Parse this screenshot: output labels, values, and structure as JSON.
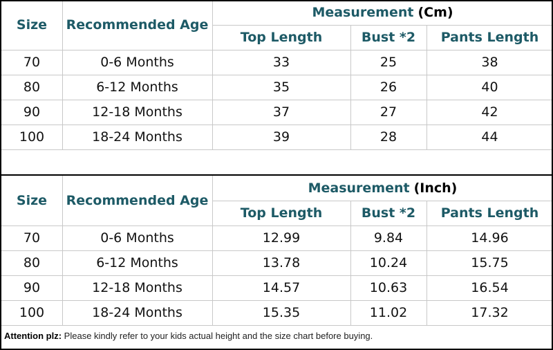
{
  "tables": [
    {
      "headers": {
        "size": "Size",
        "age": "Recommended Age",
        "group": "Measurement",
        "unit": "(Cm)",
        "columns": [
          "Top Length",
          "Bust *2",
          "Pants Length"
        ]
      },
      "rows": [
        [
          "70",
          "0-6 Months",
          "33",
          "25",
          "38"
        ],
        [
          "80",
          "6-12 Months",
          "35",
          "26",
          "40"
        ],
        [
          "90",
          "12-18 Months",
          "37",
          "27",
          "42"
        ],
        [
          "100",
          "18-24 Months",
          "39",
          "28",
          "44"
        ]
      ]
    },
    {
      "headers": {
        "size": "Size",
        "age": "Recommended Age",
        "group": "Measurement",
        "unit": "(Inch)",
        "columns": [
          "Top Length",
          "Bust *2",
          "Pants Length"
        ]
      },
      "rows": [
        [
          "70",
          "0-6 Months",
          "12.99",
          "9.84",
          "14.96"
        ],
        [
          "80",
          "6-12 Months",
          "13.78",
          "10.24",
          "15.75"
        ],
        [
          "90",
          "12-18 Months",
          "14.57",
          "10.63",
          "16.54"
        ],
        [
          "100",
          "18-24 Months",
          "15.35",
          "11.02",
          "17.32"
        ]
      ]
    }
  ],
  "note": {
    "label": "Attention plz:",
    "text": "Please kindly refer to your kids actual height and the size chart before buying."
  }
}
